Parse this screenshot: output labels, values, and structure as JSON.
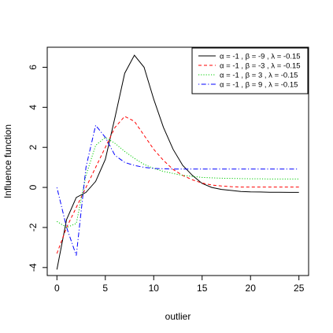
{
  "chart_data": {
    "type": "line",
    "xlabel": "outlier",
    "ylabel": "Influence function",
    "xlim": [
      -1,
      26
    ],
    "ylim": [
      -4.4,
      7.0
    ],
    "xticks": [
      0,
      5,
      10,
      15,
      20,
      25
    ],
    "yticks": [
      -4,
      -2,
      0,
      2,
      4,
      6
    ],
    "grid": false,
    "legend_position": "top-right",
    "x": [
      0,
      1,
      2,
      3,
      4,
      5,
      6,
      7,
      8,
      9,
      10,
      11,
      12,
      13,
      14,
      15,
      16,
      17,
      18,
      19,
      20,
      21,
      22,
      23,
      24,
      25
    ],
    "series": [
      {
        "name": "α = -1 ,  β = -9 ,  λ = -0.15",
        "color": "#000000",
        "dash": "solid",
        "values": [
          -4.1,
          -1.6,
          -0.5,
          -0.25,
          0.3,
          1.4,
          3.5,
          5.7,
          6.6,
          6.0,
          4.4,
          3.0,
          1.9,
          1.1,
          0.6,
          0.2,
          0.0,
          -0.1,
          -0.15,
          -0.2,
          -0.22,
          -0.23,
          -0.24,
          -0.24,
          -0.25,
          -0.25
        ]
      },
      {
        "name": "α = -1 ,  β = -3 ,  λ = -0.15",
        "color": "#ff0000",
        "dash": "dashed",
        "values": [
          -3.3,
          -2.0,
          -1.0,
          0.0,
          1.0,
          2.0,
          3.0,
          3.55,
          3.3,
          2.6,
          1.9,
          1.35,
          0.9,
          0.6,
          0.38,
          0.22,
          0.12,
          0.07,
          0.04,
          0.02,
          0.02,
          0.02,
          0.02,
          0.02,
          0.02,
          0.02
        ]
      },
      {
        "name": "α = -1 ,  β = 3 ,  λ = -0.15",
        "color": "#00cc00",
        "dash": "dotted",
        "values": [
          -1.7,
          -2.0,
          -1.8,
          0.6,
          2.1,
          2.5,
          2.2,
          1.8,
          1.45,
          1.15,
          0.95,
          0.8,
          0.7,
          0.6,
          0.55,
          0.5,
          0.48,
          0.46,
          0.45,
          0.44,
          0.43,
          0.43,
          0.42,
          0.42,
          0.42,
          0.42
        ]
      },
      {
        "name": "α = -1 ,  β = 9 ,  λ = -0.15",
        "color": "#0000ff",
        "dash": "dotdash",
        "values": [
          0.0,
          -2.0,
          -3.4,
          1.0,
          3.1,
          2.5,
          1.6,
          1.25,
          1.1,
          1.0,
          0.95,
          0.93,
          0.92,
          0.92,
          0.92,
          0.92,
          0.92,
          0.92,
          0.92,
          0.92,
          0.92,
          0.92,
          0.92,
          0.92,
          0.92,
          0.92
        ]
      }
    ]
  }
}
